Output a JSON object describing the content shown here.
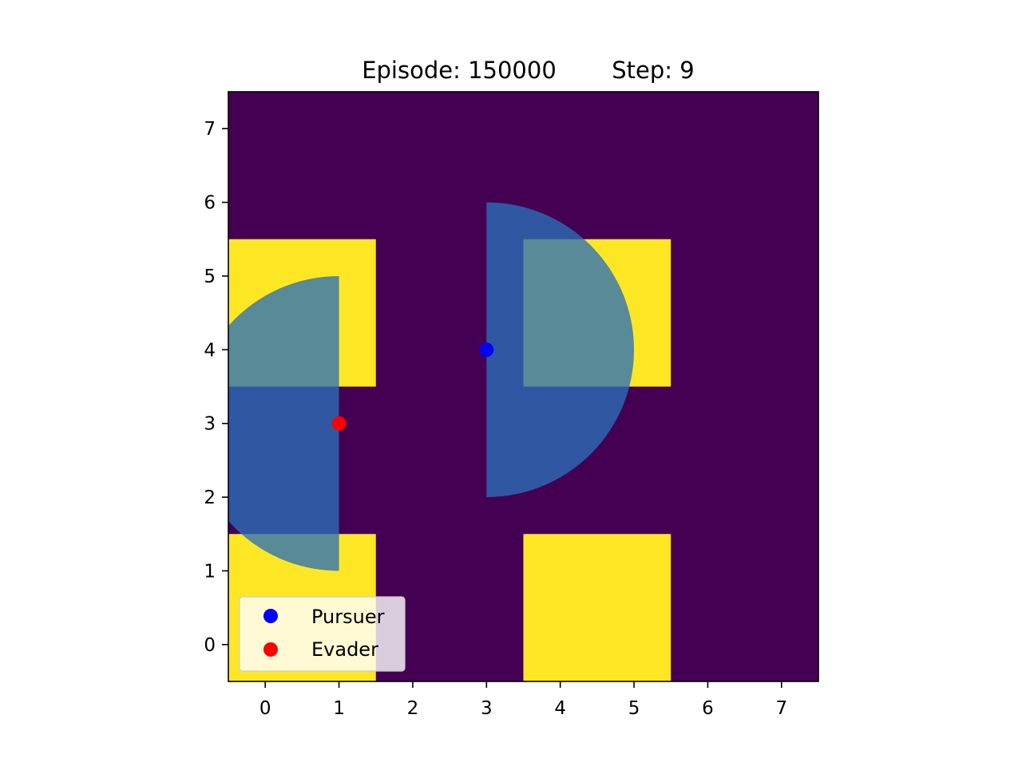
{
  "chart_data": {
    "type": "heatmap",
    "title": {
      "episode_label": "Episode: 150000",
      "step_label": "Step: 9"
    },
    "xlabel": "",
    "ylabel": "",
    "xlim": [
      -0.5,
      7.5
    ],
    "ylim": [
      -0.5,
      7.5
    ],
    "xticks": [
      0,
      1,
      2,
      3,
      4,
      5,
      6,
      7
    ],
    "yticks": [
      0,
      1,
      2,
      3,
      4,
      5,
      6,
      7
    ],
    "grid": false,
    "colors": {
      "free": "#440154",
      "obstacle": "#fde725",
      "view": "#2a6fb8",
      "pursuer": "#0000ff",
      "evader": "#ff0000"
    },
    "obstacles": [
      {
        "x0": -0.5,
        "x1": 1.5,
        "y0": 3.5,
        "y1": 5.5
      },
      {
        "x0": -0.5,
        "x1": 1.5,
        "y0": -0.5,
        "y1": 1.5
      },
      {
        "x0": 3.5,
        "x1": 5.5,
        "y0": 3.5,
        "y1": 5.5
      },
      {
        "x0": 3.5,
        "x1": 5.5,
        "y0": -0.5,
        "y1": 1.5
      }
    ],
    "view_regions": [
      {
        "agent": "Pursuer",
        "cx": 3,
        "cy": 4,
        "r": 2,
        "from_deg": -90,
        "to_deg": 90
      },
      {
        "agent": "Evader",
        "cx": 1,
        "cy": 3,
        "r": 2,
        "from_deg": 90,
        "to_deg": 270
      }
    ],
    "series": [
      {
        "name": "Pursuer",
        "x": [
          3
        ],
        "y": [
          4
        ],
        "color": "#0000ff"
      },
      {
        "name": "Evader",
        "x": [
          1
        ],
        "y": [
          3
        ],
        "color": "#ff0000"
      }
    ],
    "legend": {
      "position": "lower-left",
      "entries": [
        "Pursuer",
        "Evader"
      ]
    }
  }
}
